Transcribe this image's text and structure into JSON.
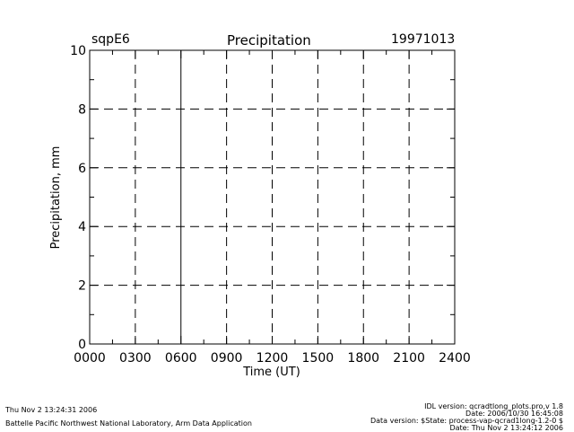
{
  "header": {
    "station": "sqpE6",
    "title": "Precipitation",
    "date": "19971013"
  },
  "footer": {
    "left_line1": "Thu Nov  2 13:24:31 2006",
    "left_line2": "Battelle Pacific Northwest National Laboratory, Arm Data Application",
    "right_line1": "IDL version: qcradtlong_plots.pro,v 1.8",
    "right_line2": "Date: 2006/10/30 16:45:08",
    "right_line3": "Data version: $State: process-vap-qcrad1long-1.2-0 $",
    "right_line4": "Date: Thu Nov  2 13:24:12 2006"
  },
  "chart_data": {
    "type": "line",
    "title": "Precipitation",
    "xlabel": "Time (UT)",
    "ylabel": "Precipitation, mm",
    "xlim": [
      0,
      2400
    ],
    "ylim": [
      0,
      10
    ],
    "x_tick_labels": [
      "0000",
      "0300",
      "0600",
      "0900",
      "1200",
      "1500",
      "1800",
      "2100",
      "2400"
    ],
    "y_tick_labels": [
      "0",
      "2",
      "4",
      "6",
      "8",
      "10"
    ],
    "x_gridlines": [
      300,
      900,
      1200,
      1500,
      1800,
      2100
    ],
    "x_solid_gridlines": [
      600
    ],
    "y_gridlines": [
      2,
      4,
      6,
      8
    ],
    "grid": true,
    "series": []
  }
}
